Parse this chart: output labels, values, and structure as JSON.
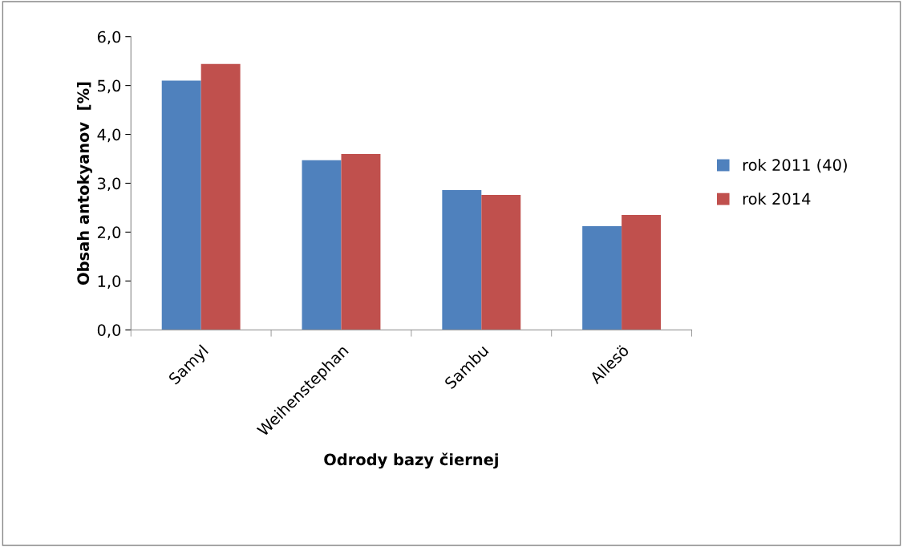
{
  "chart_data": {
    "type": "bar",
    "xlabel": "Odrody bazy čiernej",
    "ylabel": "Obsah antokyanov  [%]",
    "categories": [
      "Samyl",
      "Weihenstephan",
      "Sambu",
      "Allesö"
    ],
    "series": [
      {
        "name": "rok 2011 (40)",
        "color": "#4f81bd",
        "values": [
          5.1,
          3.47,
          2.86,
          2.12
        ]
      },
      {
        "name": "rok 2014",
        "color": "#c0504d",
        "values": [
          5.44,
          3.6,
          2.76,
          2.35
        ]
      }
    ],
    "ylim": [
      0,
      6
    ],
    "yticks": [
      {
        "value": 0,
        "label": "0,0"
      },
      {
        "value": 1,
        "label": "1,0"
      },
      {
        "value": 2,
        "label": "2,0"
      },
      {
        "value": 3,
        "label": "3,0"
      },
      {
        "value": 4,
        "label": "4,0"
      },
      {
        "value": 5,
        "label": "5,0"
      },
      {
        "value": 6,
        "label": "6,0"
      }
    ],
    "grid": false,
    "legend": "right"
  }
}
